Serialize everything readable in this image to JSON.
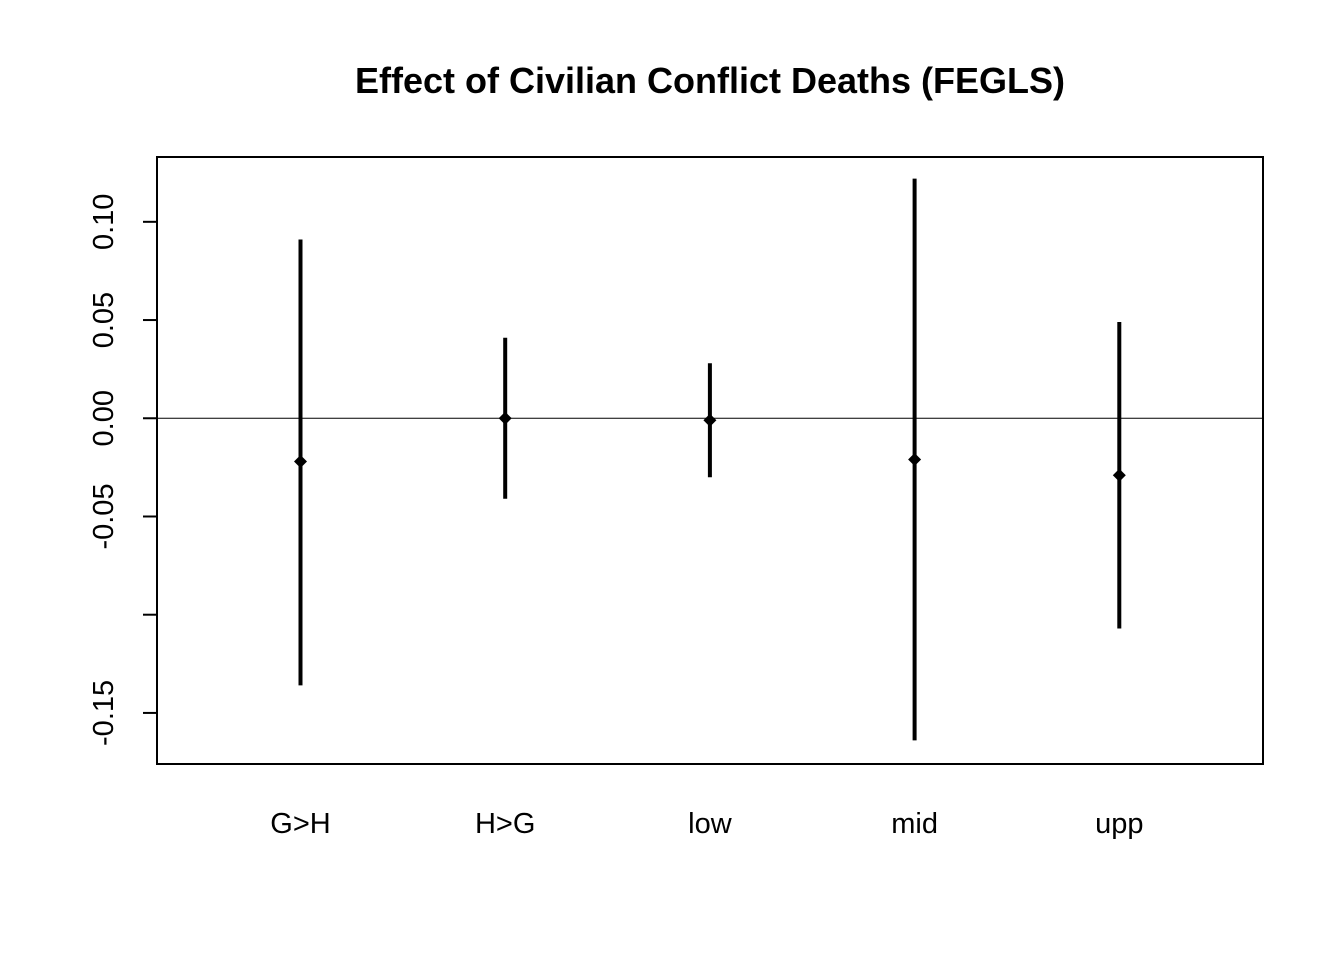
{
  "chart_data": {
    "type": "errorbar",
    "title": "Effect of Civilian Conflict Deaths (FEGLS)",
    "xlabel": "",
    "ylabel": "",
    "categories": [
      "G>H",
      "H>G",
      "low",
      "mid",
      "upp"
    ],
    "estimates": [
      -0.022,
      0.0,
      -0.001,
      -0.021,
      -0.029
    ],
    "lower": [
      -0.136,
      -0.041,
      -0.03,
      -0.164,
      -0.107
    ],
    "upper": [
      0.091,
      0.041,
      0.028,
      0.122,
      0.049
    ],
    "ylim": [
      -0.176,
      0.133
    ],
    "yticks": [
      0.1,
      0.05,
      0.0,
      -0.05,
      -0.1,
      -0.15
    ],
    "ytick_labels": [
      "0.10",
      "0.05",
      "0.00",
      "-0.05",
      "",
      "-0.15"
    ],
    "reference_line": 0,
    "grid": false,
    "color": "#000000"
  }
}
